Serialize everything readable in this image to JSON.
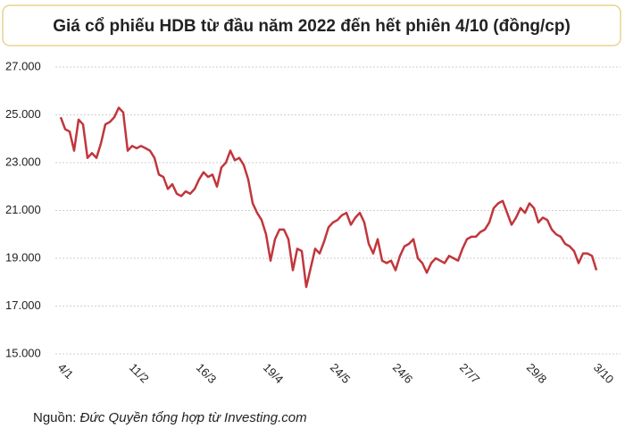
{
  "chart_data": {
    "type": "line",
    "title": "Giá cổ phiếu HDB từ đầu năm 2022 đến hết phiên 4/10 (đồng/cp)",
    "source_label": "Nguồn:",
    "source": "Đức Quyền tổng hợp từ Investing.com",
    "categories": [
      "4/1",
      null,
      null,
      null,
      null,
      null,
      null,
      null,
      null,
      null,
      null,
      null,
      null,
      null,
      null,
      null,
      "11/2",
      null,
      null,
      null,
      null,
      null,
      null,
      null,
      null,
      null,
      null,
      null,
      null,
      null,
      null,
      "16/3",
      null,
      null,
      null,
      null,
      null,
      null,
      null,
      null,
      null,
      null,
      null,
      null,
      null,
      null,
      "19/4",
      null,
      null,
      null,
      null,
      null,
      null,
      null,
      null,
      null,
      null,
      null,
      null,
      null,
      null,
      "24/5",
      null,
      null,
      null,
      null,
      null,
      null,
      null,
      null,
      null,
      null,
      null,
      null,
      null,
      "24/6",
      null,
      null,
      null,
      null,
      null,
      null,
      null,
      null,
      null,
      null,
      null,
      null,
      null,
      null,
      "27/7",
      null,
      null,
      null,
      null,
      null,
      null,
      null,
      null,
      null,
      null,
      null,
      null,
      null,
      null,
      "29/8",
      null,
      null,
      null,
      null,
      null,
      null,
      null,
      null,
      null,
      null,
      null,
      null,
      null,
      null,
      "3/10"
    ],
    "values": [
      24900,
      24400,
      24300,
      23500,
      24800,
      24600,
      23200,
      23400,
      23200,
      23800,
      24600,
      24700,
      24900,
      25300,
      25100,
      23500,
      23700,
      23600,
      23700,
      23600,
      23500,
      23200,
      22500,
      22400,
      21900,
      22100,
      21700,
      21600,
      21800,
      21700,
      21900,
      22300,
      22600,
      22400,
      22500,
      22000,
      22800,
      23000,
      23500,
      23100,
      23200,
      22900,
      22300,
      21300,
      20900,
      20600,
      20000,
      18900,
      19800,
      20200,
      20200,
      19800,
      18500,
      19400,
      19300,
      17800,
      18600,
      19400,
      19200,
      19700,
      20300,
      20500,
      20600,
      20800,
      20900,
      20400,
      20700,
      20900,
      20500,
      19600,
      19200,
      19800,
      18900,
      18800,
      18900,
      18500,
      19100,
      19500,
      19600,
      19800,
      19000,
      18800,
      18400,
      18800,
      19000,
      18900,
      18800,
      19100,
      19000,
      18900,
      19400,
      19800,
      19900,
      19900,
      20100,
      20200,
      20500,
      21100,
      21300,
      21400,
      20900,
      20400,
      20700,
      21100,
      20900,
      21300,
      21100,
      20500,
      20700,
      20600,
      20200,
      20000,
      19900,
      19600,
      19500,
      19300,
      18800,
      19200,
      19200,
      19100,
      18500
    ],
    "color": "#c1363c",
    "ylim": [
      15000,
      27000
    ],
    "yticks": [
      {
        "value": 15000,
        "label": "15.000"
      },
      {
        "value": 17000,
        "label": "17.000"
      },
      {
        "value": 19000,
        "label": "19.000"
      },
      {
        "value": 21000,
        "label": "21.000"
      },
      {
        "value": 23000,
        "label": "23.000"
      },
      {
        "value": 25000,
        "label": "25.000"
      },
      {
        "value": 27000,
        "label": "27.000"
      }
    ],
    "grid": true
  }
}
